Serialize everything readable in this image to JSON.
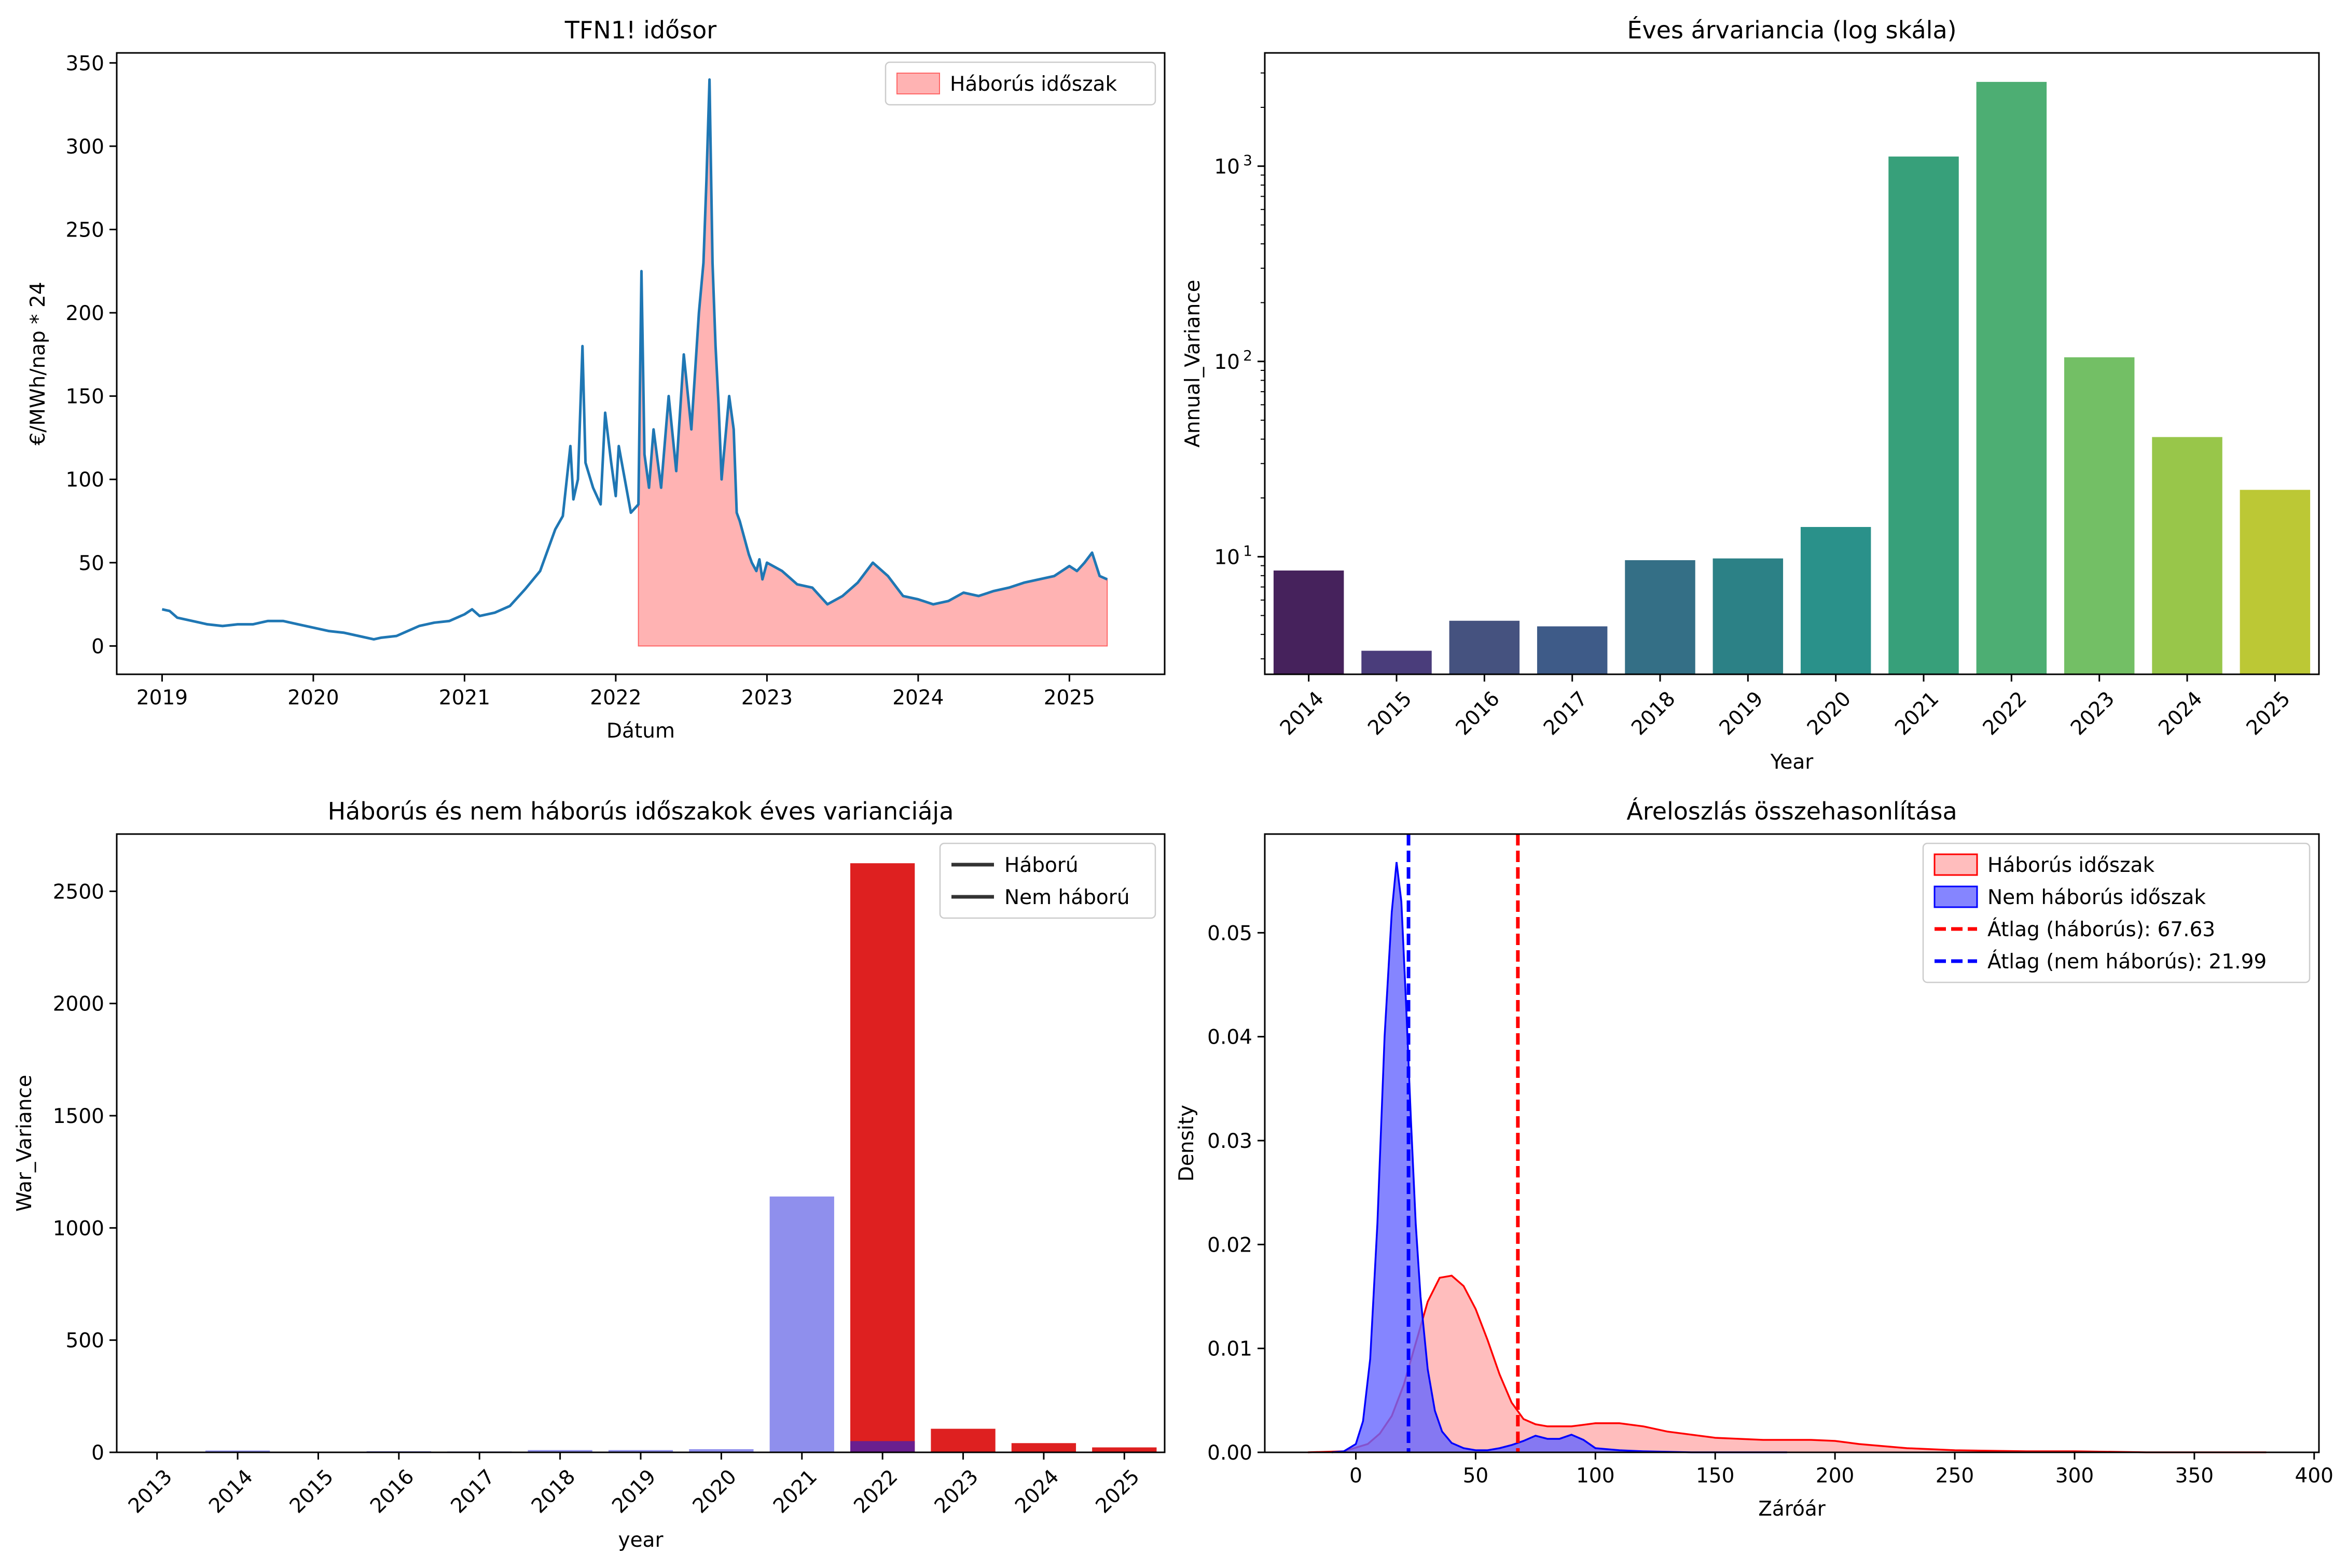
{
  "chart_data": [
    {
      "id": "timeseries",
      "type": "line",
      "title": "TFN1! idősor",
      "xlabel": "Dátum",
      "ylabel": "€/MWh/nap * 24",
      "xlim": [
        2018.7,
        2025.63
      ],
      "ylim": [
        -17,
        356
      ],
      "xticks": [
        2019,
        2020,
        2021,
        2022,
        2023,
        2024,
        2025
      ],
      "yticks": [
        0,
        50,
        100,
        150,
        200,
        250,
        300,
        350
      ],
      "legend": {
        "position": "top-right",
        "entries": [
          "Háborús időszak"
        ]
      },
      "series": [
        {
          "name": "",
          "color": "#1f77b4",
          "x": [
            2019.0,
            2019.05,
            2019.1,
            2019.2,
            2019.3,
            2019.4,
            2019.5,
            2019.6,
            2019.7,
            2019.8,
            2019.9,
            2020.0,
            2020.1,
            2020.2,
            2020.3,
            2020.4,
            2020.45,
            2020.55,
            2020.6,
            2020.7,
            2020.8,
            2020.9,
            2021.0,
            2021.05,
            2021.1,
            2021.2,
            2021.3,
            2021.4,
            2021.5,
            2021.6,
            2021.65,
            2021.7,
            2021.72,
            2021.75,
            2021.78,
            2021.8,
            2021.85,
            2021.9,
            2021.93,
            2021.97,
            2022.0,
            2022.02,
            2022.05,
            2022.1,
            2022.15,
            2022.17,
            2022.19,
            2022.22,
            2022.25,
            2022.3,
            2022.35,
            2022.4,
            2022.45,
            2022.5,
            2022.55,
            2022.58,
            2022.6,
            2022.62,
            2022.64,
            2022.66,
            2022.68,
            2022.7,
            2022.72,
            2022.75,
            2022.78,
            2022.8,
            2022.82,
            2022.85,
            2022.88,
            2022.9,
            2022.93,
            2022.95,
            2022.97,
            2023.0,
            2023.1,
            2023.2,
            2023.3,
            2023.35,
            2023.4,
            2023.5,
            2023.6,
            2023.7,
            2023.8,
            2023.9,
            2024.0,
            2024.1,
            2024.2,
            2024.3,
            2024.4,
            2024.5,
            2024.6,
            2024.7,
            2024.8,
            2024.9,
            2025.0,
            2025.05,
            2025.1,
            2025.15,
            2025.2,
            2025.25
          ],
          "y": [
            22,
            21,
            17,
            15,
            13,
            12,
            13,
            13,
            15,
            15,
            13,
            11,
            9,
            8,
            6,
            4,
            5,
            6,
            8,
            12,
            14,
            15,
            19,
            22,
            18,
            20,
            24,
            34,
            45,
            70,
            78,
            120,
            88,
            100,
            180,
            110,
            95,
            85,
            140,
            110,
            90,
            120,
            105,
            80,
            85,
            225,
            115,
            95,
            130,
            95,
            150,
            105,
            175,
            130,
            200,
            230,
            280,
            340,
            230,
            180,
            145,
            100,
            120,
            150,
            130,
            80,
            75,
            65,
            55,
            50,
            45,
            52,
            40,
            50,
            45,
            37,
            35,
            30,
            25,
            30,
            38,
            50,
            42,
            30,
            28,
            25,
            27,
            32,
            30,
            33,
            35,
            38,
            40,
            42,
            48,
            45,
            50,
            56,
            42,
            40
          ]
        }
      ],
      "shaded_region": {
        "label": "Háborús időszak",
        "color": "#ff9999",
        "x_start": 2022.15,
        "x_end": 2025.25
      }
    },
    {
      "id": "annual-variance",
      "type": "bar",
      "title": "Éves árvariancia (log skála)",
      "xlabel": "Year",
      "ylabel": "Annual_Variance",
      "yscale": "log",
      "ylim": [
        2.5,
        3800
      ],
      "yticks": [
        10,
        100,
        1000
      ],
      "ytick_labels": [
        [
          "10",
          "1"
        ],
        [
          "10",
          "2"
        ],
        [
          "10",
          "3"
        ]
      ],
      "categories": [
        "2014",
        "2015",
        "2016",
        "2017",
        "2018",
        "2019",
        "2020",
        "2021",
        "2022",
        "2023",
        "2024",
        "2025"
      ],
      "values": [
        8.5,
        3.3,
        4.7,
        4.4,
        9.6,
        9.8,
        14.2,
        1120,
        2700,
        105,
        41,
        22
      ],
      "colors": [
        "#46225c",
        "#4a3d7b",
        "#45527f",
        "#3e5b88",
        "#346f86",
        "#2c8186",
        "#2a918a",
        "#37a07a",
        "#4dae73",
        "#73bf65",
        "#98c64a",
        "#bcc835"
      ]
    },
    {
      "id": "war-variance",
      "type": "bar",
      "title": "Háborús és nem háborús időszakok éves varianciája",
      "xlabel": "year",
      "ylabel": "War_Variance",
      "ylim": [
        0,
        2755
      ],
      "yticks": [
        0,
        500,
        1000,
        1500,
        2000,
        2500
      ],
      "legend": {
        "position": "top-right",
        "entries": [
          "Háború",
          "Nem háború"
        ]
      },
      "categories": [
        "2013",
        "2014",
        "2015",
        "2016",
        "2017",
        "2018",
        "2019",
        "2020",
        "2021",
        "2022",
        "2023",
        "2024",
        "2025"
      ],
      "series": [
        {
          "name": "Háború",
          "color": "#de2020",
          "values": [
            0,
            0,
            0,
            0,
            0,
            0,
            0,
            0,
            0,
            2625,
            105,
            41,
            22
          ]
        },
        {
          "name": "Nem háború",
          "color": "#8f8fed",
          "values": [
            0,
            8,
            3,
            5,
            4,
            10,
            10,
            14,
            1140,
            50,
            0,
            0,
            0
          ]
        }
      ]
    },
    {
      "id": "price-distribution",
      "type": "area",
      "title": "Áreloszlás összehasonlítása",
      "xlabel": "Záróár",
      "ylabel": "Density",
      "xlim": [
        -38,
        402
      ],
      "ylim": [
        0,
        0.0595
      ],
      "xticks": [
        0,
        50,
        100,
        150,
        200,
        250,
        300,
        350,
        400
      ],
      "yticks": [
        0.0,
        0.01,
        0.02,
        0.03,
        0.04,
        0.05
      ],
      "ytick_labels": [
        "0.00",
        "0.01",
        "0.02",
        "0.03",
        "0.04",
        "0.05"
      ],
      "legend": {
        "position": "top-right",
        "entries": [
          "Háborús időszak",
          "Nem háborús időszak",
          "Átlag (háborús): 67.63",
          "Átlag (nem háborús): 21.99"
        ]
      },
      "series": [
        {
          "name": "Háborús időszak",
          "color": "#ff0000",
          "x": [
            -20,
            -5,
            5,
            10,
            15,
            20,
            25,
            30,
            35,
            40,
            45,
            50,
            55,
            60,
            65,
            70,
            75,
            80,
            90,
            100,
            110,
            120,
            130,
            150,
            170,
            190,
            200,
            210,
            230,
            250,
            280,
            300,
            330,
            360,
            380
          ],
          "y": [
            0.0,
            0.0001,
            0.0008,
            0.0018,
            0.0035,
            0.0065,
            0.0105,
            0.0145,
            0.0168,
            0.017,
            0.016,
            0.0138,
            0.0108,
            0.0075,
            0.0048,
            0.0032,
            0.0027,
            0.0025,
            0.0025,
            0.0028,
            0.0028,
            0.0025,
            0.002,
            0.0014,
            0.0012,
            0.0012,
            0.0011,
            0.0008,
            0.0004,
            0.0002,
            0.0001,
            0.0001,
            0.0,
            0.0,
            0.0
          ]
        },
        {
          "name": "Nem háborús időszak",
          "color": "#0000ff",
          "x": [
            -10,
            -5,
            0,
            3,
            6,
            9,
            12,
            15,
            17,
            19,
            21,
            23,
            25,
            27,
            30,
            33,
            36,
            40,
            45,
            50,
            55,
            60,
            65,
            70,
            75,
            80,
            85,
            90,
            95,
            100,
            110,
            120,
            140,
            160,
            180
          ],
          "y": [
            0.0,
            0.0001,
            0.0008,
            0.003,
            0.009,
            0.022,
            0.04,
            0.052,
            0.0568,
            0.053,
            0.043,
            0.032,
            0.022,
            0.015,
            0.008,
            0.004,
            0.002,
            0.0009,
            0.0004,
            0.0002,
            0.0002,
            0.0004,
            0.0007,
            0.0011,
            0.0016,
            0.0013,
            0.0013,
            0.0017,
            0.0012,
            0.0004,
            0.0002,
            0.0001,
            0.0,
            0.0,
            0.0
          ]
        }
      ],
      "mean_lines": [
        {
          "label": "Átlag (háborús): 67.63",
          "value": 67.63,
          "color": "#ff0000"
        },
        {
          "label": "Átlag (nem háborús): 21.99",
          "value": 21.99,
          "color": "#0000ff"
        }
      ]
    }
  ]
}
